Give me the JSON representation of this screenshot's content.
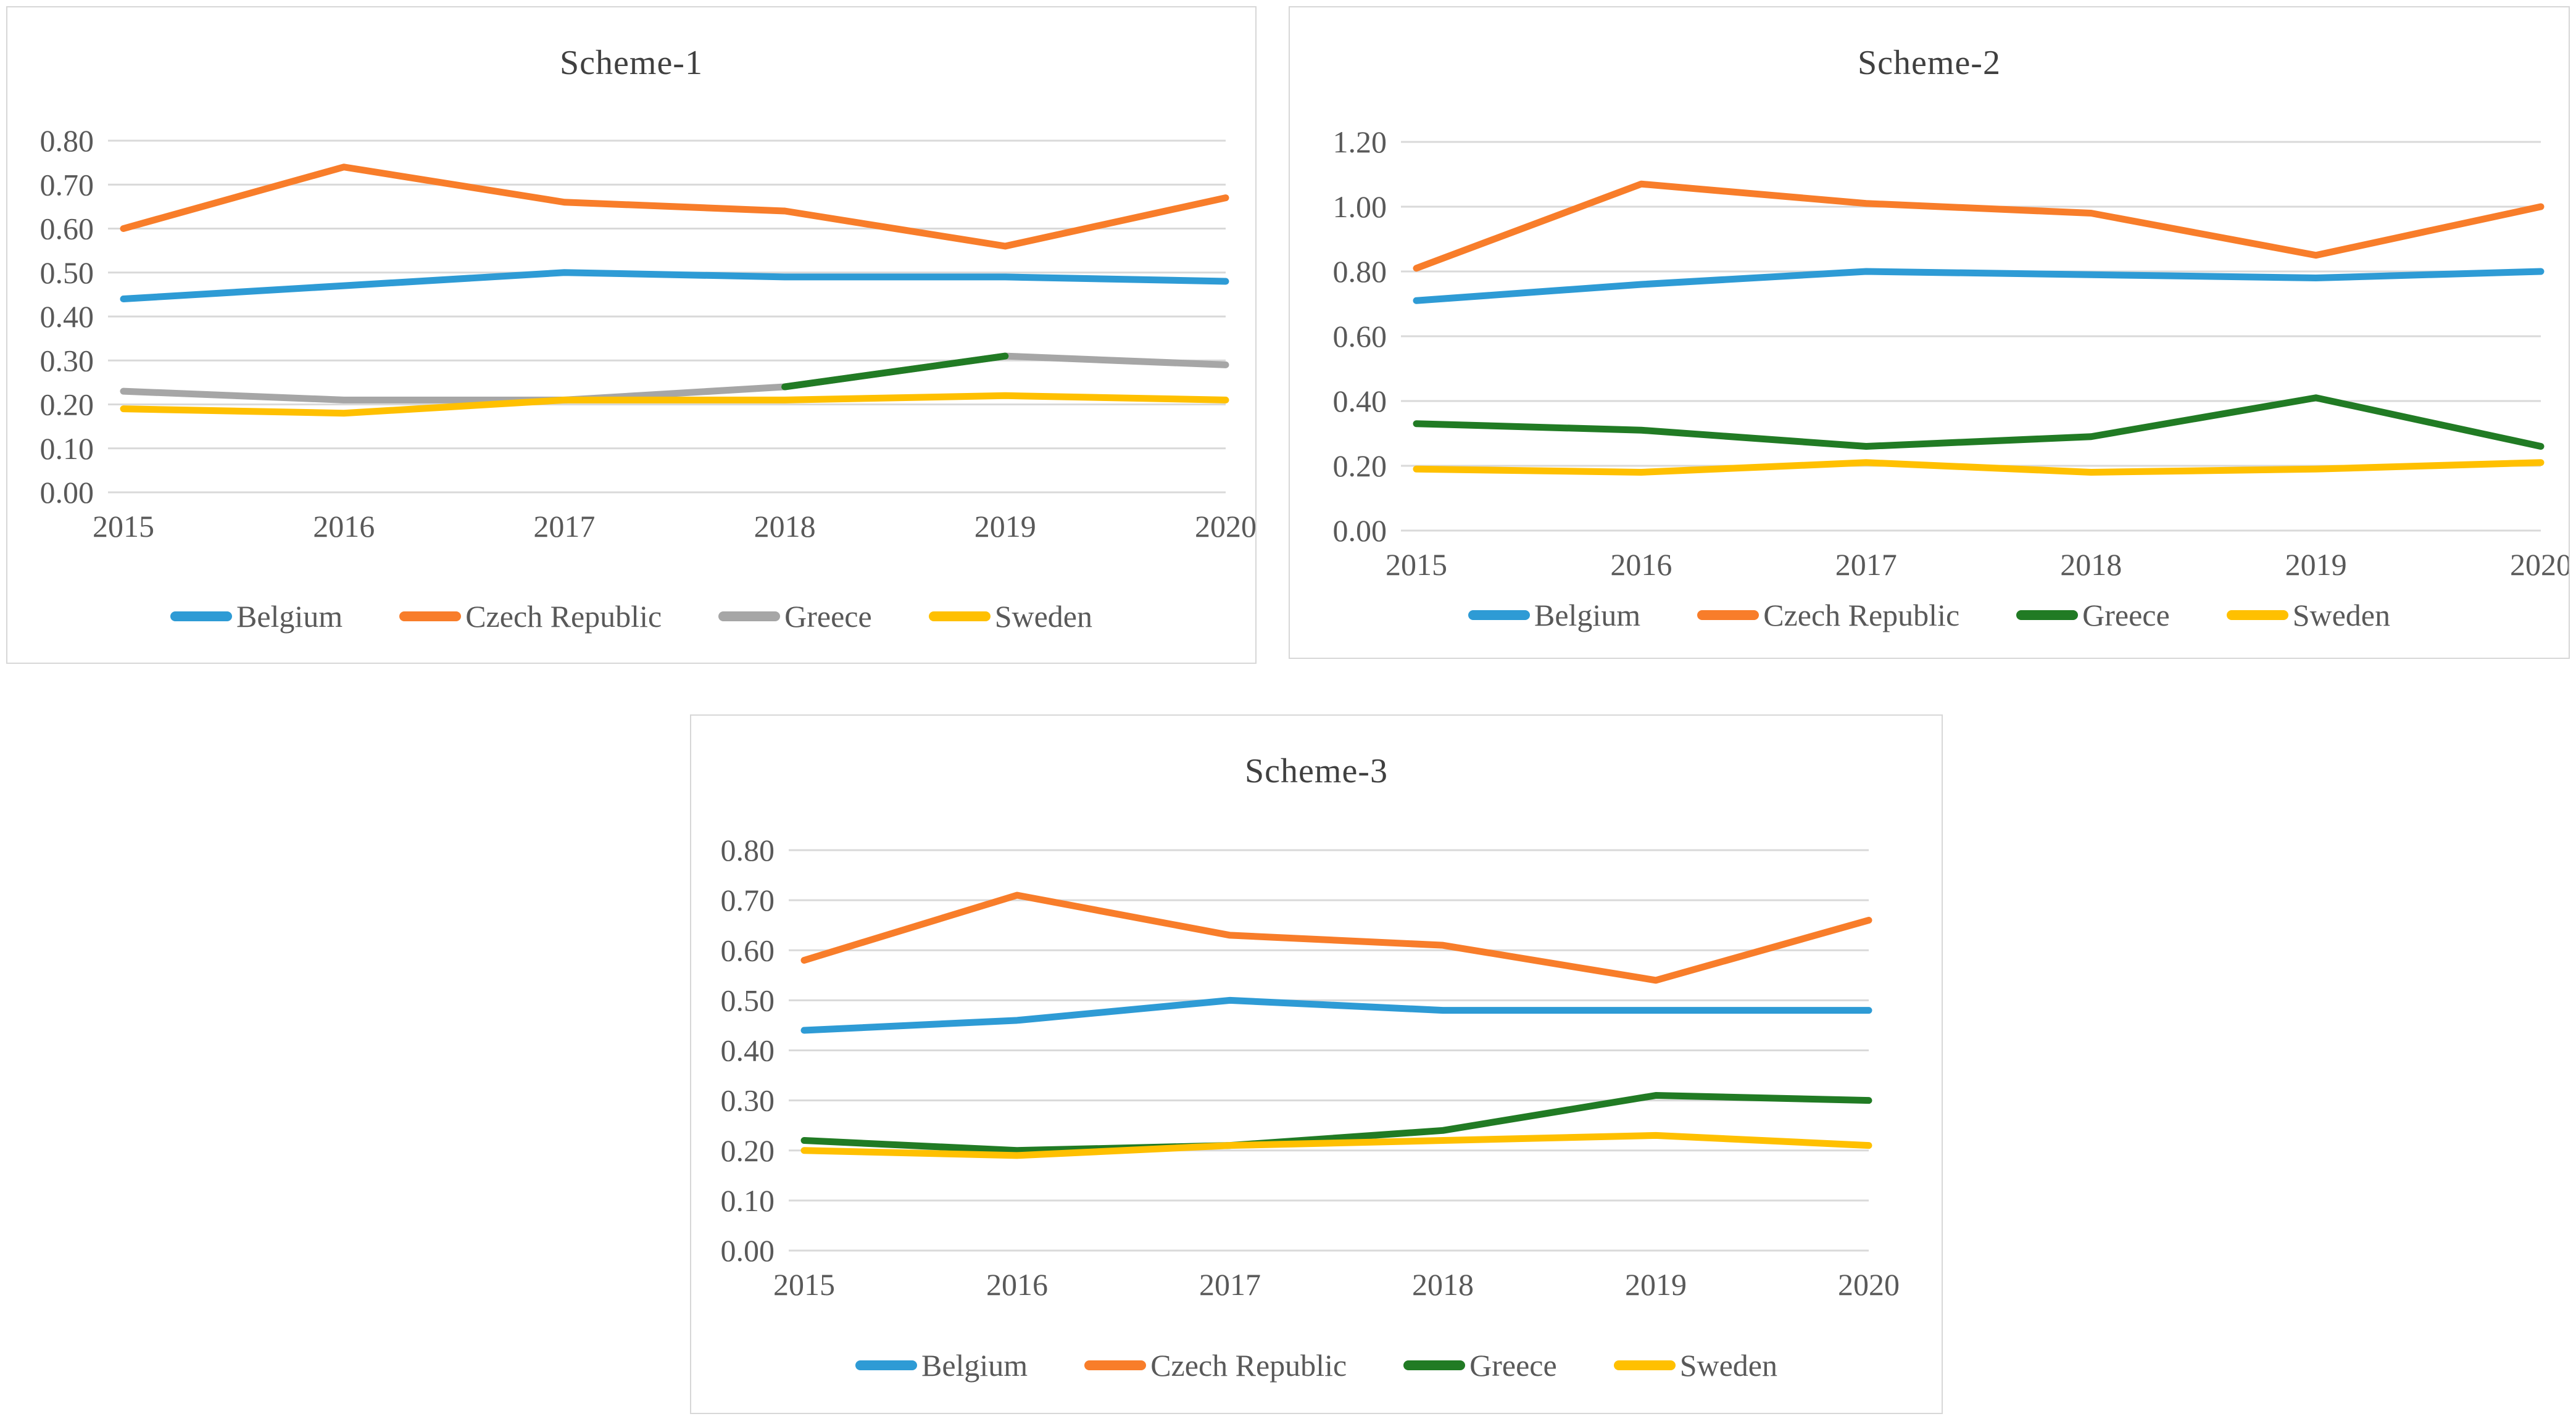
{
  "page": {
    "background": "#FFFFFF"
  },
  "styles": {
    "grid_color": "#D9D9D9",
    "panel_border_color": "#D7D7D7",
    "tick_text_color": "#595959",
    "title_text_color": "#404040",
    "legend_text_color": "#595959"
  },
  "chart_data": [
    {
      "type": "line",
      "title": "Scheme-1",
      "categories": [
        "2015",
        "2016",
        "2017",
        "2018",
        "2019",
        "2020"
      ],
      "ylim": [
        0,
        0.8
      ],
      "y_step": 0.1,
      "y_tick_labels": [
        "0.80",
        "0.70",
        "0.60",
        "0.50",
        "0.40",
        "0.30",
        "0.20",
        "0.10",
        "0.00"
      ],
      "grid": true,
      "legend_position": "bottom",
      "series": [
        {
          "name": "Belgium",
          "color": "#2E9BD5",
          "values": [
            0.44,
            0.47,
            0.5,
            0.49,
            0.49,
            0.48
          ]
        },
        {
          "name": "Czech Republic",
          "color": "#F87D2A",
          "values": [
            0.6,
            0.74,
            0.66,
            0.64,
            0.56,
            0.67
          ]
        },
        {
          "name": "Greece",
          "color": "#A6A6A6",
          "values": [
            0.23,
            0.21,
            0.21,
            0.24,
            0.31,
            0.29
          ]
        },
        {
          "name": "Sweden",
          "color": "#FFC000",
          "values": [
            0.19,
            0.18,
            0.21,
            0.21,
            0.22,
            0.21
          ]
        }
      ],
      "overlay_segment": {
        "name": "greece-green-segment",
        "color": "#217B24",
        "points": [
          {
            "x": "2018",
            "y": 0.24
          },
          {
            "x": "2019",
            "y": 0.31
          }
        ]
      }
    },
    {
      "type": "line",
      "title": "Scheme-2",
      "categories": [
        "2015",
        "2016",
        "2017",
        "2018",
        "2019",
        "2020"
      ],
      "ylim": [
        0,
        1.2
      ],
      "y_step": 0.2,
      "y_tick_labels": [
        "1.20",
        "1.00",
        "0.80",
        "0.60",
        "0.40",
        "0.20",
        "0.00"
      ],
      "grid": true,
      "legend_position": "bottom",
      "series": [
        {
          "name": "Belgium",
          "color": "#2E9BD5",
          "values": [
            0.71,
            0.76,
            0.8,
            0.79,
            0.78,
            0.8
          ]
        },
        {
          "name": "Czech Republic",
          "color": "#F87D2A",
          "values": [
            0.81,
            1.07,
            1.01,
            0.98,
            0.85,
            1.0
          ]
        },
        {
          "name": "Greece",
          "color": "#217B24",
          "values": [
            0.33,
            0.31,
            0.26,
            0.29,
            0.41,
            0.26
          ]
        },
        {
          "name": "Sweden",
          "color": "#FFC000",
          "values": [
            0.19,
            0.18,
            0.21,
            0.18,
            0.19,
            0.21
          ]
        }
      ]
    },
    {
      "type": "line",
      "title": "Scheme-3",
      "categories": [
        "2015",
        "2016",
        "2017",
        "2018",
        "2019",
        "2020"
      ],
      "ylim": [
        0,
        0.8
      ],
      "y_step": 0.1,
      "y_tick_labels": [
        "0.80",
        "0.70",
        "0.60",
        "0.50",
        "0.40",
        "0.30",
        "0.20",
        "0.10",
        "0.00"
      ],
      "grid": true,
      "legend_position": "bottom",
      "series": [
        {
          "name": "Belgium",
          "color": "#2E9BD5",
          "values": [
            0.44,
            0.46,
            0.5,
            0.48,
            0.48,
            0.48
          ]
        },
        {
          "name": "Czech Republic",
          "color": "#F87D2A",
          "values": [
            0.58,
            0.71,
            0.63,
            0.61,
            0.54,
            0.66
          ]
        },
        {
          "name": "Greece",
          "color": "#217B24",
          "values": [
            0.22,
            0.2,
            0.21,
            0.24,
            0.31,
            0.3
          ]
        },
        {
          "name": "Sweden",
          "color": "#FFC000",
          "values": [
            0.2,
            0.19,
            0.21,
            0.22,
            0.23,
            0.21
          ]
        }
      ]
    }
  ]
}
